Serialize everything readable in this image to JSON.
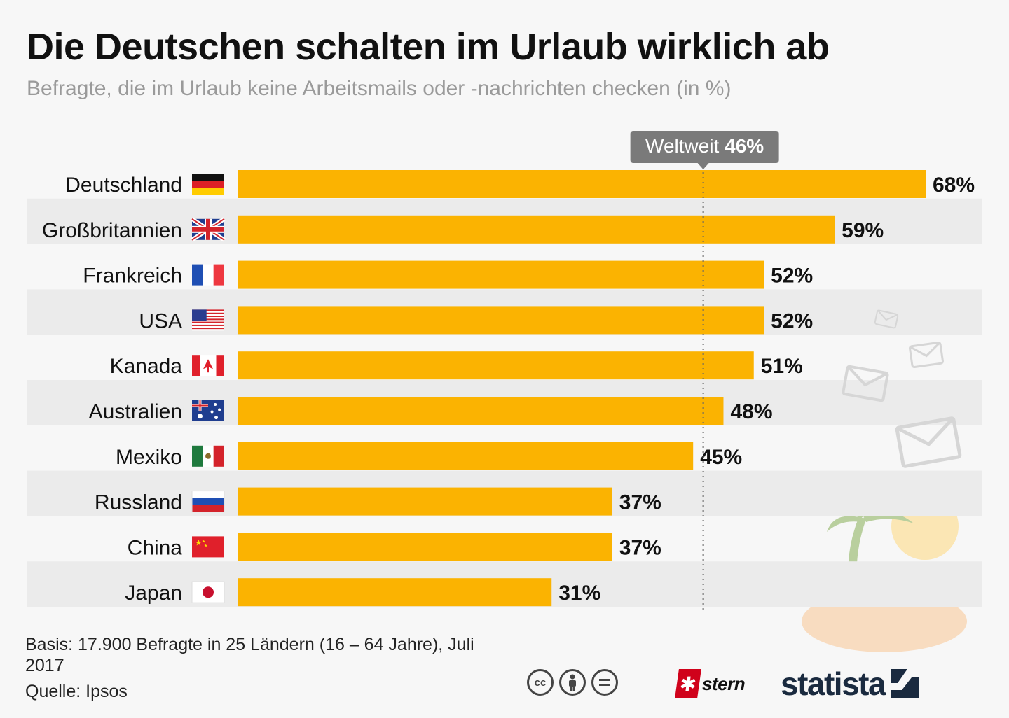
{
  "chart_data": {
    "type": "bar",
    "orientation": "horizontal",
    "title": "Die Deutschen schalten im Urlaub wirklich ab",
    "subtitle": "Befragte, die im Urlaub keine Arbeitsmails oder -nachrichten checken (in %)",
    "categories": [
      "Deutschland",
      "Großbritannien",
      "Frankreich",
      "USA",
      "Kanada",
      "Australien",
      "Mexiko",
      "Russland",
      "China",
      "Japan"
    ],
    "values": [
      68,
      59,
      52,
      52,
      51,
      48,
      45,
      37,
      37,
      31
    ],
    "value_labels": [
      "68%",
      "59%",
      "52%",
      "52%",
      "51%",
      "48%",
      "45%",
      "37%",
      "37%",
      "31%"
    ],
    "flags": [
      "flag-germany-icon",
      "flag-uk-icon",
      "flag-france-icon",
      "flag-usa-icon",
      "flag-canada-icon",
      "flag-australia-icon",
      "flag-mexico-icon",
      "flag-russia-icon",
      "flag-china-icon",
      "flag-japan-icon"
    ],
    "reference": {
      "label": "Weltweit",
      "value": 46,
      "value_label": "46%"
    },
    "xlim": [
      0,
      100
    ],
    "xlabel": "",
    "ylabel": "",
    "grid": false,
    "legend": "none"
  },
  "colors": {
    "bar": "#fbb301",
    "stripe": "#ebebeb",
    "background": "#f7f7f7",
    "reference_tag": "#7a7a7a",
    "subtitle": "#9a9a9a"
  },
  "footer": {
    "basis": "Basis: 17.900 Befragte in 25 Ländern (16 – 64 Jahre), Juli 2017",
    "source": "Quelle: Ipsos"
  },
  "logos": {
    "cc": [
      "cc",
      "by",
      "nd"
    ],
    "stern": "stern",
    "statista": "statista"
  },
  "decorations": [
    "envelope-icon",
    "envelope-icon",
    "envelope-icon",
    "envelope-icon",
    "palm-tree-icon",
    "sun-icon",
    "island-icon"
  ]
}
